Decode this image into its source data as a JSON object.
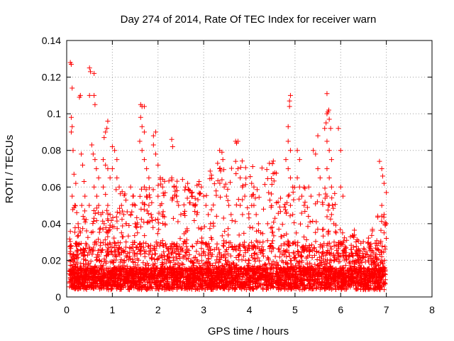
{
  "chart_data": {
    "type": "scatter",
    "title": "Day 274 of 2014, Rate Of TEC Index for receiver warn",
    "xlabel": "GPS time / hours",
    "ylabel": "ROTI / TECUs",
    "xlim": [
      0,
      8
    ],
    "ylim": [
      0,
      0.14
    ],
    "x_ticks": [
      0,
      1,
      2,
      3,
      4,
      5,
      6,
      7,
      8
    ],
    "y_ticks": [
      0,
      0.02,
      0.04,
      0.06,
      0.08,
      0.1,
      0.12,
      0.14
    ],
    "x_tick_labels": [
      "0",
      "1",
      "2",
      "3",
      "4",
      "5",
      "6",
      "7",
      "8"
    ],
    "y_tick_labels": [
      "0",
      "0.02",
      "0.04",
      "0.06",
      "0.08",
      "0.1",
      "0.12",
      "0.14"
    ],
    "grid": true,
    "marker": "plus",
    "color": "#ff0000",
    "series": [
      {
        "name": "ROTI",
        "points": [
          [
            0.08,
            0.128
          ],
          [
            0.1,
            0.127
          ],
          [
            0.12,
            0.114
          ],
          [
            0.1,
            0.098
          ],
          [
            0.12,
            0.093
          ],
          [
            0.1,
            0.09
          ],
          [
            0.14,
            0.08
          ],
          [
            0.16,
            0.067
          ],
          [
            0.2,
            0.062
          ],
          [
            0.12,
            0.055
          ],
          [
            0.18,
            0.05
          ],
          [
            0.22,
            0.046
          ],
          [
            0.25,
            0.04
          ],
          [
            0.3,
            0.035
          ],
          [
            0.1,
            0.028
          ],
          [
            0.15,
            0.022
          ],
          [
            0.2,
            0.018
          ],
          [
            0.28,
            0.109
          ],
          [
            0.3,
            0.11
          ],
          [
            0.32,
            0.078
          ],
          [
            0.35,
            0.072
          ],
          [
            0.38,
            0.063
          ],
          [
            0.4,
            0.055
          ],
          [
            0.33,
            0.05
          ],
          [
            0.36,
            0.044
          ],
          [
            0.5,
            0.125
          ],
          [
            0.52,
            0.123
          ],
          [
            0.6,
            0.122
          ],
          [
            0.5,
            0.11
          ],
          [
            0.6,
            0.11
          ],
          [
            0.62,
            0.105
          ],
          [
            0.55,
            0.083
          ],
          [
            0.58,
            0.078
          ],
          [
            0.62,
            0.075
          ],
          [
            0.65,
            0.07
          ],
          [
            0.7,
            0.065
          ],
          [
            0.6,
            0.06
          ],
          [
            0.66,
            0.055
          ],
          [
            0.7,
            0.05
          ],
          [
            0.75,
            0.045
          ],
          [
            0.82,
            0.087
          ],
          [
            0.85,
            0.09
          ],
          [
            0.88,
            0.092
          ],
          [
            0.9,
            0.096
          ],
          [
            0.8,
            0.075
          ],
          [
            0.85,
            0.072
          ],
          [
            0.9,
            0.07
          ],
          [
            0.95,
            0.065
          ],
          [
            0.8,
            0.06
          ],
          [
            0.85,
            0.056
          ],
          [
            0.9,
            0.05
          ],
          [
            0.95,
            0.045
          ],
          [
            0.82,
            0.04
          ],
          [
            0.9,
            0.035
          ],
          [
            1.0,
            0.082
          ],
          [
            1.05,
            0.08
          ],
          [
            1.1,
            0.075
          ],
          [
            1.0,
            0.07
          ],
          [
            1.1,
            0.065
          ],
          [
            1.15,
            0.06
          ],
          [
            1.2,
            0.05
          ],
          [
            1.25,
            0.045
          ],
          [
            1.3,
            0.04
          ],
          [
            1.2,
            0.035
          ],
          [
            1.3,
            0.03
          ],
          [
            1.4,
            0.06
          ],
          [
            1.45,
            0.055
          ],
          [
            1.5,
            0.05
          ],
          [
            1.4,
            0.045
          ],
          [
            1.5,
            0.04
          ],
          [
            1.55,
            0.035
          ],
          [
            1.62,
            0.105
          ],
          [
            1.65,
            0.104
          ],
          [
            1.7,
            0.104
          ],
          [
            1.62,
            0.098
          ],
          [
            1.65,
            0.093
          ],
          [
            1.7,
            0.09
          ],
          [
            1.6,
            0.085
          ],
          [
            1.65,
            0.08
          ],
          [
            1.7,
            0.075
          ],
          [
            1.75,
            0.07
          ],
          [
            1.8,
            0.065
          ],
          [
            1.7,
            0.06
          ],
          [
            1.75,
            0.055
          ],
          [
            1.8,
            0.05
          ],
          [
            1.85,
            0.045
          ],
          [
            1.9,
            0.088
          ],
          [
            1.95,
            0.09
          ],
          [
            1.9,
            0.083
          ],
          [
            1.95,
            0.078
          ],
          [
            2.0,
            0.072
          ],
          [
            2.05,
            0.065
          ],
          [
            2.1,
            0.06
          ],
          [
            2.0,
            0.055
          ],
          [
            2.05,
            0.05
          ],
          [
            2.1,
            0.045
          ],
          [
            2.3,
            0.086
          ],
          [
            2.32,
            0.082
          ],
          [
            2.3,
            0.065
          ],
          [
            2.35,
            0.06
          ],
          [
            2.4,
            0.055
          ],
          [
            2.45,
            0.05
          ],
          [
            2.5,
            0.045
          ],
          [
            2.6,
            0.06
          ],
          [
            2.65,
            0.062
          ],
          [
            2.7,
            0.058
          ],
          [
            2.75,
            0.055
          ],
          [
            2.8,
            0.05
          ],
          [
            2.85,
            0.045
          ],
          [
            2.9,
            0.063
          ],
          [
            2.95,
            0.06
          ],
          [
            3.0,
            0.055
          ],
          [
            3.05,
            0.05
          ],
          [
            3.1,
            0.045
          ],
          [
            3.15,
            0.04
          ],
          [
            3.35,
            0.08
          ],
          [
            3.4,
            0.079
          ],
          [
            3.42,
            0.075
          ],
          [
            3.35,
            0.07
          ],
          [
            3.4,
            0.064
          ],
          [
            3.45,
            0.06
          ],
          [
            3.5,
            0.055
          ],
          [
            3.55,
            0.05
          ],
          [
            3.6,
            0.045
          ],
          [
            3.7,
            0.085
          ],
          [
            3.72,
            0.084
          ],
          [
            3.75,
            0.085
          ],
          [
            3.7,
            0.074
          ],
          [
            3.75,
            0.07
          ],
          [
            3.8,
            0.065
          ],
          [
            3.85,
            0.06
          ],
          [
            3.9,
            0.055
          ],
          [
            3.8,
            0.05
          ],
          [
            3.85,
            0.045
          ],
          [
            4.05,
            0.062
          ],
          [
            4.1,
            0.06
          ],
          [
            4.05,
            0.055
          ],
          [
            4.1,
            0.05
          ],
          [
            4.15,
            0.045
          ],
          [
            4.2,
            0.04
          ],
          [
            4.25,
            0.035
          ],
          [
            4.3,
            0.03
          ],
          [
            4.4,
            0.04
          ],
          [
            4.5,
            0.038
          ],
          [
            4.85,
            0.093
          ],
          [
            4.88,
            0.107
          ],
          [
            4.9,
            0.11
          ],
          [
            4.88,
            0.104
          ],
          [
            4.85,
            0.085
          ],
          [
            4.9,
            0.08
          ],
          [
            4.8,
            0.075
          ],
          [
            4.85,
            0.07
          ],
          [
            4.9,
            0.065
          ],
          [
            4.95,
            0.06
          ],
          [
            4.85,
            0.055
          ],
          [
            4.9,
            0.05
          ],
          [
            4.95,
            0.045
          ],
          [
            5.05,
            0.08
          ],
          [
            5.1,
            0.075
          ],
          [
            5.05,
            0.065
          ],
          [
            5.1,
            0.06
          ],
          [
            5.15,
            0.055
          ],
          [
            5.2,
            0.05
          ],
          [
            5.3,
            0.06
          ],
          [
            5.35,
            0.055
          ],
          [
            5.4,
            0.08
          ],
          [
            5.45,
            0.078
          ],
          [
            5.5,
            0.07
          ],
          [
            5.55,
            0.065
          ],
          [
            5.5,
            0.088
          ],
          [
            5.65,
            0.092
          ],
          [
            5.68,
            0.095
          ],
          [
            5.7,
            0.1
          ],
          [
            5.72,
            0.101
          ],
          [
            5.74,
            0.102
          ],
          [
            5.7,
            0.111
          ],
          [
            5.75,
            0.097
          ],
          [
            5.78,
            0.092
          ],
          [
            5.7,
            0.085
          ],
          [
            5.75,
            0.08
          ],
          [
            5.8,
            0.075
          ],
          [
            5.7,
            0.07
          ],
          [
            5.75,
            0.065
          ],
          [
            5.8,
            0.06
          ],
          [
            5.7,
            0.055
          ],
          [
            5.75,
            0.05
          ],
          [
            5.8,
            0.045
          ],
          [
            5.85,
            0.04
          ],
          [
            5.9,
            0.035
          ],
          [
            5.95,
            0.092
          ],
          [
            6.0,
            0.08
          ],
          [
            6.0,
            0.06
          ],
          [
            6.05,
            0.055
          ],
          [
            6.35,
            0.025
          ],
          [
            6.5,
            0.022
          ],
          [
            6.6,
            0.02
          ],
          [
            6.7,
            0.02
          ],
          [
            6.85,
            0.074
          ],
          [
            6.9,
            0.07
          ],
          [
            6.92,
            0.066
          ],
          [
            6.95,
            0.062
          ],
          [
            7.0,
            0.057
          ],
          [
            6.9,
            0.05
          ],
          [
            6.95,
            0.045
          ],
          [
            7.0,
            0.04
          ],
          [
            6.95,
            0.035
          ],
          [
            7.0,
            0.032
          ]
        ]
      }
    ]
  }
}
